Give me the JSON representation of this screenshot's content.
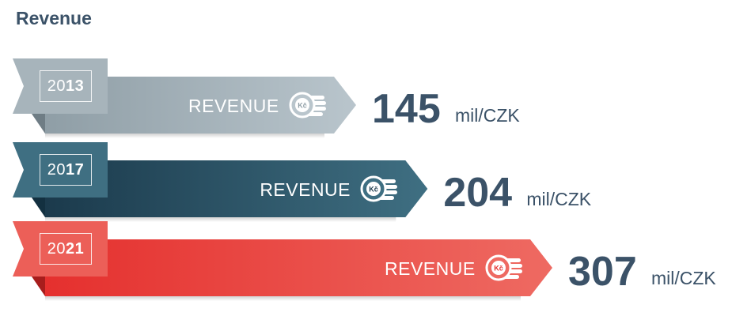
{
  "title": "Revenue",
  "chart_data": {
    "type": "bar",
    "title": "Revenue",
    "categories": [
      "2013",
      "2017",
      "2021"
    ],
    "values": [
      145,
      204,
      307
    ],
    "unit": "mil/CZK",
    "bar_label": "REVENUE",
    "currency_icon_text": "Kč"
  },
  "rows": [
    {
      "year_prefix": "20",
      "year_suffix": "13",
      "label": "REVENUE",
      "value": "145",
      "unit": "mil/CZK",
      "color_dark": "#8f9ea6",
      "color_light": "#b9c5cc",
      "color_tab": "#a7b4bb",
      "color_fold": "#6f7d85"
    },
    {
      "year_prefix": "20",
      "year_suffix": "17",
      "label": "REVENUE",
      "value": "204",
      "unit": "mil/CZK",
      "color_dark": "#1b3a4c",
      "color_light": "#3f6f82",
      "color_tab": "#3f6f82",
      "color_fold": "#133040"
    },
    {
      "year_prefix": "20",
      "year_suffix": "21",
      "label": "REVENUE",
      "value": "307",
      "unit": "mil/CZK",
      "color_dark": "#e5302e",
      "color_light": "#ee6a62",
      "color_tab": "#ec5f58",
      "color_fold": "#a71d1c"
    }
  ]
}
